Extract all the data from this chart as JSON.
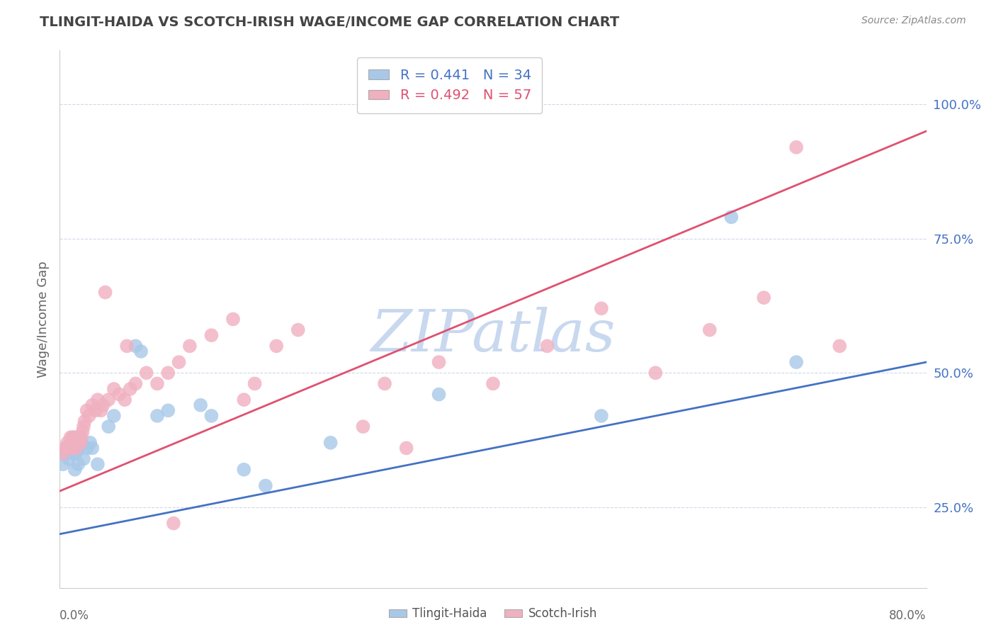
{
  "title": "TLINGIT-HAIDA VS SCOTCH-IRISH WAGE/INCOME GAP CORRELATION CHART",
  "source": "Source: ZipAtlas.com",
  "ylabel": "Wage/Income Gap",
  "yticks": [
    25.0,
    50.0,
    75.0,
    100.0
  ],
  "xlim": [
    0.0,
    80.0
  ],
  "ylim": [
    10.0,
    110.0
  ],
  "blue_r": 0.441,
  "blue_n": 34,
  "pink_r": 0.492,
  "pink_n": 57,
  "blue_color": "#a8c8e8",
  "pink_color": "#f0b0c0",
  "blue_line_color": "#4472c4",
  "pink_line_color": "#e05070",
  "watermark": "ZIPatlas",
  "watermark_color": "#c8d8ef",
  "background_color": "#ffffff",
  "grid_color": "#d0d8e8",
  "blue_scatter_x": [
    0.3,
    0.5,
    0.7,
    0.8,
    1.0,
    1.1,
    1.2,
    1.3,
    1.4,
    1.5,
    1.6,
    1.7,
    1.8,
    2.0,
    2.2,
    2.5,
    2.8,
    3.0,
    3.5,
    4.5,
    5.0,
    7.0,
    7.5,
    9.0,
    10.0,
    13.0,
    14.0,
    17.0,
    19.0,
    25.0,
    35.0,
    50.0,
    62.0,
    68.0
  ],
  "blue_scatter_y": [
    33.0,
    35.0,
    36.0,
    34.0,
    36.0,
    37.0,
    35.0,
    38.0,
    32.0,
    35.0,
    36.0,
    33.0,
    36.0,
    37.0,
    34.0,
    36.0,
    37.0,
    36.0,
    33.0,
    40.0,
    42.0,
    55.0,
    54.0,
    42.0,
    43.0,
    44.0,
    42.0,
    32.0,
    29.0,
    37.0,
    46.0,
    42.0,
    79.0,
    52.0
  ],
  "pink_scatter_x": [
    0.3,
    0.5,
    0.7,
    0.8,
    1.0,
    1.1,
    1.2,
    1.3,
    1.4,
    1.5,
    1.6,
    1.7,
    1.8,
    1.9,
    2.0,
    2.1,
    2.2,
    2.3,
    2.5,
    2.7,
    3.0,
    3.3,
    3.5,
    3.8,
    4.0,
    4.5,
    5.0,
    5.5,
    6.0,
    6.5,
    7.0,
    8.0,
    9.0,
    10.0,
    11.0,
    12.0,
    14.0,
    16.0,
    18.0,
    20.0,
    22.0,
    30.0,
    35.0,
    40.0,
    45.0,
    50.0,
    55.0,
    60.0,
    65.0,
    68.0,
    72.0,
    17.0,
    10.5,
    6.2,
    4.2,
    28.0,
    32.0
  ],
  "pink_scatter_y": [
    35.0,
    36.0,
    37.0,
    36.0,
    38.0,
    37.0,
    38.0,
    36.0,
    37.0,
    36.0,
    38.0,
    37.0,
    38.0,
    37.0,
    38.0,
    39.0,
    40.0,
    41.0,
    43.0,
    42.0,
    44.0,
    43.0,
    45.0,
    43.0,
    44.0,
    45.0,
    47.0,
    46.0,
    45.0,
    47.0,
    48.0,
    50.0,
    48.0,
    50.0,
    52.0,
    55.0,
    57.0,
    60.0,
    48.0,
    55.0,
    58.0,
    48.0,
    52.0,
    48.0,
    55.0,
    62.0,
    50.0,
    58.0,
    64.0,
    92.0,
    55.0,
    45.0,
    22.0,
    55.0,
    65.0,
    40.0,
    36.0
  ],
  "blue_line_x0": 0.0,
  "blue_line_y0": 20.0,
  "blue_line_x1": 80.0,
  "blue_line_y1": 52.0,
  "pink_line_x0": 0.0,
  "pink_line_y0": 28.0,
  "pink_line_x1": 80.0,
  "pink_line_y1": 95.0
}
